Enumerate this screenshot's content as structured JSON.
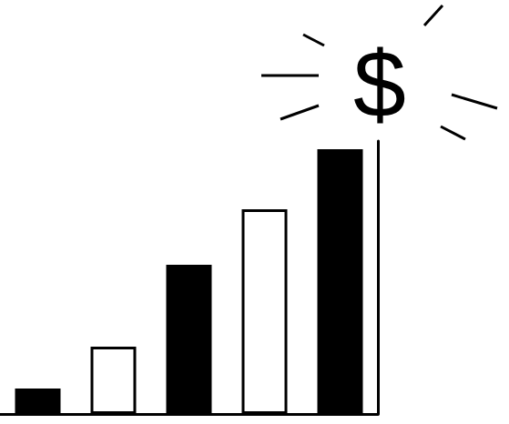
{
  "chart_data": {
    "type": "bar",
    "categories": [
      null,
      null,
      null,
      null,
      null
    ],
    "values": [
      28,
      74,
      164,
      225,
      291
    ],
    "colors": [
      "#000000",
      "#ffffff",
      "#000000",
      "#ffffff",
      "#000000"
    ],
    "ylim": [
      0,
      300
    ],
    "tick_labels": false,
    "grid": false,
    "annotation": "$"
  }
}
